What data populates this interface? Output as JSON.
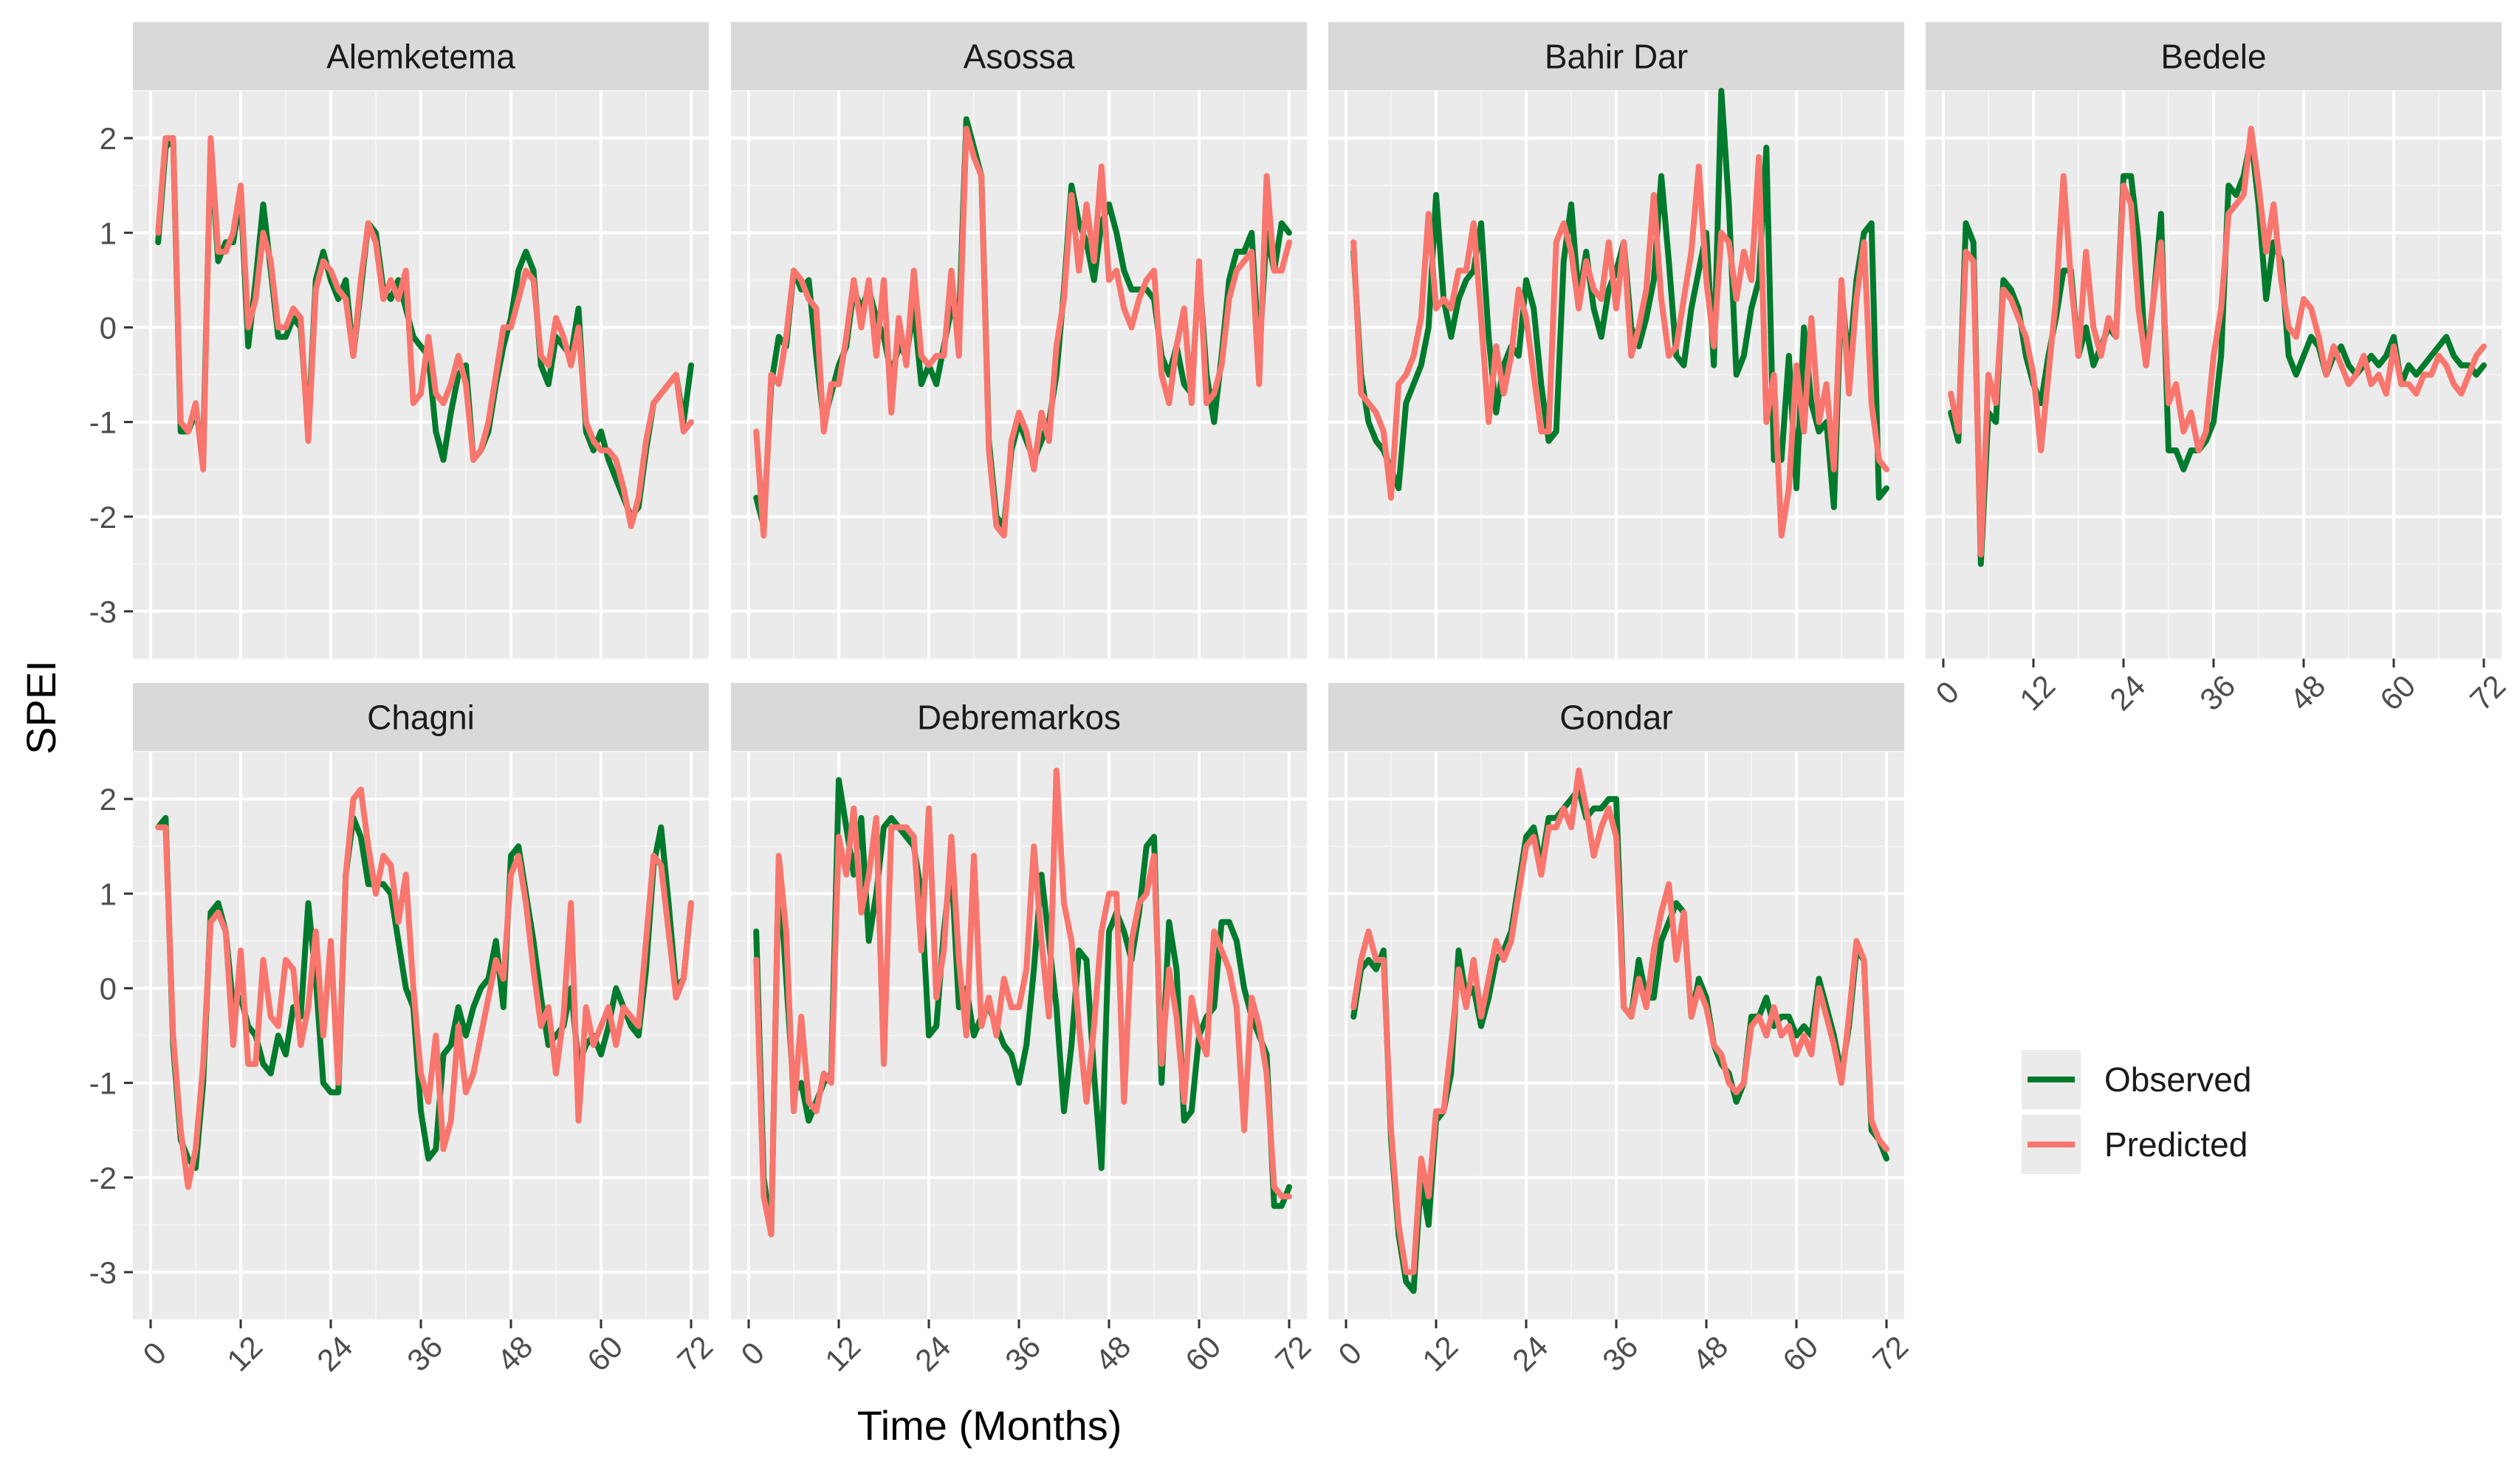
{
  "chart_data": {
    "type": "line",
    "layout": "facet-grid",
    "ylabel": "SPEI",
    "xlabel": "Time (Months)",
    "xlim": [
      0,
      72
    ],
    "ylim": [
      -3.5,
      2.5
    ],
    "x_ticks": [
      0,
      12,
      24,
      36,
      48,
      60,
      72
    ],
    "y_ticks": [
      -3,
      -2,
      -1,
      0,
      1,
      2
    ],
    "grid": true,
    "legend": {
      "position": "right",
      "entries": [
        {
          "name": "Observed",
          "color": "#007a2c"
        },
        {
          "name": "Predicted",
          "color": "#f8766d"
        }
      ]
    },
    "x": [
      1,
      2,
      3,
      4,
      5,
      6,
      7,
      8,
      9,
      10,
      11,
      12,
      13,
      14,
      15,
      16,
      17,
      18,
      19,
      20,
      21,
      22,
      23,
      24,
      25,
      26,
      27,
      28,
      29,
      30,
      31,
      32,
      33,
      34,
      35,
      36,
      37,
      38,
      39,
      40,
      41,
      42,
      43,
      44,
      45,
      46,
      47,
      48,
      49,
      50,
      51,
      52,
      53,
      54,
      55,
      56,
      57,
      58,
      59,
      60,
      61,
      62,
      63,
      64,
      65,
      66,
      67,
      68,
      69,
      70,
      71,
      72
    ],
    "panels": [
      {
        "title": "Alemketema",
        "observed": [
          0.9,
          1.9,
          2.0,
          -1.1,
          -1.1,
          -0.9,
          -1.3,
          1.9,
          0.7,
          0.9,
          0.9,
          1.4,
          -0.2,
          0.5,
          1.3,
          0.6,
          -0.1,
          -0.1,
          0.1,
          0.0,
          -1.1,
          0.5,
          0.8,
          0.5,
          0.3,
          0.5,
          -0.3,
          0.4,
          1.1,
          1.0,
          0.4,
          0.3,
          0.5,
          0.2,
          -0.1,
          -0.2,
          -0.3,
          -1.1,
          -1.4,
          -0.9,
          -0.5,
          -0.4,
          -1.4,
          -1.3,
          -1.1,
          -0.6,
          -0.2,
          0.1,
          0.6,
          0.8,
          0.6,
          -0.4,
          -0.6,
          -0.1,
          -0.2,
          -0.3,
          0.2,
          -1.1,
          -1.3,
          -1.1,
          -1.4,
          -1.6,
          -1.8,
          -2.0,
          -1.9,
          -1.3,
          -0.8,
          -0.7,
          -0.6,
          -0.5,
          -1.0,
          -0.4
        ],
        "predicted": [
          1.0,
          2.0,
          2.0,
          -1.0,
          -1.1,
          -0.8,
          -1.5,
          2.0,
          0.8,
          0.8,
          1.0,
          1.5,
          0.0,
          0.3,
          1.0,
          0.7,
          0.0,
          0.0,
          0.2,
          0.1,
          -1.2,
          0.4,
          0.7,
          0.6,
          0.4,
          0.3,
          -0.3,
          0.5,
          1.1,
          0.9,
          0.3,
          0.5,
          0.3,
          0.6,
          -0.8,
          -0.7,
          -0.1,
          -0.7,
          -0.8,
          -0.6,
          -0.3,
          -0.6,
          -1.4,
          -1.3,
          -1.0,
          -0.5,
          0.0,
          0.0,
          0.3,
          0.6,
          0.5,
          -0.3,
          -0.4,
          0.1,
          -0.1,
          -0.4,
          0.0,
          -1.0,
          -1.2,
          -1.3,
          -1.3,
          -1.4,
          -1.7,
          -2.1,
          -1.8,
          -1.2,
          -0.8,
          -0.7,
          -0.6,
          -0.5,
          -1.1,
          -1.0
        ]
      },
      {
        "title": "Asossa",
        "observed": [
          -1.8,
          -2.1,
          -0.6,
          -0.1,
          -0.2,
          0.6,
          0.4,
          0.5,
          -0.3,
          -1.0,
          -0.7,
          -0.4,
          -0.2,
          0.4,
          0.2,
          0.4,
          0.1,
          -0.1,
          -0.5,
          -0.2,
          -0.3,
          0.2,
          -0.6,
          -0.4,
          -0.6,
          -0.2,
          0.2,
          0.0,
          2.2,
          1.9,
          1.6,
          -1.2,
          -2.0,
          -2.1,
          -1.3,
          -1.0,
          -1.2,
          -1.4,
          -1.2,
          -1.0,
          -0.5,
          0.4,
          1.5,
          1.1,
          0.9,
          0.5,
          1.1,
          1.3,
          1.0,
          0.6,
          0.4,
          0.4,
          0.4,
          0.3,
          -0.3,
          -0.5,
          -0.2,
          -0.6,
          -0.7,
          0.6,
          -0.5,
          -1.0,
          -0.3,
          0.5,
          0.8,
          0.8,
          1.0,
          -0.3,
          1.0,
          0.6,
          1.1,
          1.0
        ],
        "predicted": [
          -1.1,
          -2.2,
          -0.5,
          -0.6,
          -0.1,
          0.6,
          0.5,
          0.3,
          0.2,
          -1.1,
          -0.6,
          -0.6,
          -0.1,
          0.5,
          0.0,
          0.5,
          -0.3,
          0.5,
          -0.9,
          0.1,
          -0.4,
          0.6,
          -0.3,
          -0.4,
          -0.3,
          -0.3,
          0.6,
          -0.3,
          2.1,
          1.8,
          1.6,
          -1.3,
          -2.1,
          -2.2,
          -1.2,
          -0.9,
          -1.1,
          -1.5,
          -0.9,
          -1.2,
          -0.2,
          0.3,
          1.4,
          0.6,
          1.3,
          0.7,
          1.7,
          0.5,
          0.6,
          0.2,
          0.0,
          0.3,
          0.5,
          0.6,
          -0.5,
          -0.8,
          -0.2,
          0.2,
          -0.8,
          0.7,
          -0.8,
          -0.7,
          -0.4,
          0.3,
          0.6,
          0.7,
          0.8,
          -0.6,
          1.6,
          0.6,
          0.6,
          0.9
        ]
      },
      {
        "title": "Bahir Dar",
        "observed": [
          0.8,
          -0.5,
          -1.0,
          -1.2,
          -1.3,
          -1.5,
          -1.7,
          -0.8,
          -0.6,
          -0.4,
          0.0,
          1.4,
          0.3,
          -0.1,
          0.3,
          0.5,
          0.6,
          1.1,
          -0.1,
          -0.9,
          -0.4,
          -0.2,
          -0.3,
          0.5,
          0.2,
          -0.6,
          -1.2,
          -1.1,
          0.7,
          1.3,
          0.3,
          0.8,
          0.2,
          -0.1,
          0.4,
          0.6,
          0.9,
          0.0,
          -0.2,
          0.1,
          0.5,
          1.6,
          0.7,
          -0.3,
          -0.4,
          0.2,
          0.6,
          1.0,
          -0.4,
          2.5,
          1.3,
          -0.5,
          -0.3,
          0.2,
          0.5,
          1.9,
          -1.4,
          -1.4,
          -0.3,
          -1.7,
          0.0,
          -0.8,
          -1.1,
          -1.0,
          -1.9,
          0.4,
          -0.4,
          0.5,
          1.0,
          1.1,
          -1.8,
          -1.7
        ],
        "predicted": [
          0.9,
          -0.7,
          -0.8,
          -0.9,
          -1.1,
          -1.8,
          -0.6,
          -0.5,
          -0.3,
          0.1,
          1.2,
          0.2,
          0.3,
          0.2,
          0.6,
          0.6,
          1.1,
          0.1,
          -1.0,
          -0.2,
          -0.7,
          -0.3,
          0.4,
          0.1,
          -0.5,
          -1.1,
          -1.1,
          0.9,
          1.1,
          0.8,
          0.2,
          0.7,
          0.4,
          0.3,
          0.9,
          0.2,
          0.9,
          -0.3,
          0.0,
          0.4,
          1.4,
          0.3,
          -0.3,
          -0.2,
          0.3,
          0.8,
          1.7,
          0.5,
          -0.2,
          1.0,
          0.9,
          0.3,
          0.8,
          0.5,
          1.8,
          -1.0,
          -0.5,
          -2.2,
          -1.7,
          -0.4,
          -1.1,
          0.1,
          -1.0,
          -0.6,
          -1.5,
          0.5,
          -0.7,
          0.3,
          0.9,
          -0.8,
          -1.4,
          -1.5
        ]
      },
      {
        "title": "Bedele",
        "observed": [
          -0.9,
          -1.2,
          1.1,
          0.9,
          -2.5,
          -0.9,
          -1.0,
          0.5,
          0.4,
          0.2,
          -0.3,
          -0.6,
          -0.8,
          -0.3,
          0.1,
          0.6,
          0.6,
          -0.3,
          0.0,
          -0.4,
          -0.2,
          0.0,
          -0.1,
          1.6,
          1.6,
          0.9,
          -0.4,
          0.3,
          1.2,
          -1.3,
          -1.3,
          -1.5,
          -1.3,
          -1.3,
          -1.2,
          -1.0,
          -0.3,
          1.5,
          1.4,
          1.6,
          2.0,
          1.3,
          0.3,
          0.9,
          0.7,
          -0.3,
          -0.5,
          -0.3,
          -0.1,
          -0.2,
          -0.5,
          -0.3,
          -0.2,
          -0.4,
          -0.5,
          -0.4,
          -0.3,
          -0.4,
          -0.3,
          -0.1,
          -0.6,
          -0.4,
          -0.5,
          -0.4,
          -0.3,
          -0.2,
          -0.1,
          -0.3,
          -0.4,
          -0.4,
          -0.5,
          -0.4
        ],
        "predicted": [
          -0.7,
          -1.1,
          0.8,
          0.7,
          -2.4,
          -0.5,
          -0.8,
          0.4,
          0.3,
          0.1,
          -0.1,
          -0.5,
          -1.3,
          -0.5,
          0.3,
          1.6,
          0.5,
          -0.3,
          0.8,
          0.0,
          -0.3,
          0.1,
          -0.1,
          1.5,
          1.3,
          0.2,
          -0.4,
          0.3,
          0.9,
          -0.8,
          -0.6,
          -1.1,
          -0.9,
          -1.3,
          -1.1,
          -0.3,
          0.2,
          1.2,
          1.3,
          1.4,
          2.1,
          1.5,
          0.8,
          1.3,
          0.5,
          0.0,
          -0.1,
          0.3,
          0.2,
          -0.1,
          -0.5,
          -0.2,
          -0.4,
          -0.6,
          -0.5,
          -0.3,
          -0.6,
          -0.5,
          -0.7,
          -0.2,
          -0.6,
          -0.6,
          -0.7,
          -0.5,
          -0.5,
          -0.3,
          -0.4,
          -0.6,
          -0.7,
          -0.5,
          -0.3,
          -0.2
        ]
      },
      {
        "title": "Chagni",
        "observed": [
          1.7,
          1.8,
          -0.6,
          -1.6,
          -1.8,
          -1.9,
          -1.0,
          0.8,
          0.9,
          0.6,
          -0.2,
          -0.1,
          -0.4,
          -0.5,
          -0.8,
          -0.9,
          -0.5,
          -0.7,
          -0.2,
          -0.3,
          0.9,
          0.1,
          -1.0,
          -1.1,
          -1.1,
          1.2,
          1.8,
          1.6,
          1.1,
          1.1,
          1.1,
          1.0,
          0.5,
          0.0,
          -0.2,
          -1.3,
          -1.8,
          -1.7,
          -0.7,
          -0.6,
          -0.2,
          -0.5,
          -0.2,
          0.0,
          0.1,
          0.5,
          -0.2,
          1.4,
          1.5,
          1.0,
          0.5,
          -0.1,
          -0.6,
          -0.5,
          -0.4,
          0.0,
          -0.8,
          -0.6,
          -0.5,
          -0.7,
          -0.4,
          0.0,
          -0.2,
          -0.4,
          -0.5,
          0.2,
          1.3,
          1.7,
          0.9,
          0.0,
          0.1,
          0.9
        ],
        "predicted": [
          1.7,
          1.7,
          -0.5,
          -1.5,
          -2.1,
          -1.7,
          -0.8,
          0.7,
          0.8,
          0.6,
          -0.6,
          0.4,
          -0.8,
          -0.8,
          0.3,
          -0.3,
          -0.4,
          0.3,
          0.2,
          -0.6,
          -0.2,
          0.6,
          -0.5,
          0.5,
          -1.0,
          1.2,
          2.0,
          2.1,
          1.5,
          1.0,
          1.4,
          1.3,
          0.7,
          1.2,
          0.0,
          -0.9,
          -1.2,
          -0.5,
          -1.7,
          -1.4,
          -0.4,
          -1.1,
          -0.9,
          -0.5,
          -0.1,
          0.3,
          0.1,
          1.2,
          1.4,
          0.9,
          0.2,
          -0.4,
          -0.2,
          -0.9,
          -0.3,
          0.9,
          -1.4,
          -0.2,
          -0.6,
          -0.4,
          -0.2,
          -0.6,
          -0.2,
          -0.3,
          -0.4,
          0.5,
          1.4,
          1.3,
          0.6,
          -0.1,
          0.1,
          0.9
        ]
      },
      {
        "title": "Debremarkos",
        "observed": [
          0.6,
          -2.0,
          -2.6,
          1.3,
          0.1,
          -1.1,
          -1.0,
          -1.4,
          -1.2,
          -1.0,
          -0.9,
          2.2,
          1.7,
          1.2,
          1.8,
          0.5,
          1.0,
          1.7,
          1.8,
          1.7,
          1.6,
          1.5,
          1.0,
          -0.5,
          -0.4,
          0.6,
          1.3,
          -0.2,
          0.0,
          -0.5,
          -0.3,
          -0.2,
          -0.4,
          -0.6,
          -0.7,
          -1.0,
          -0.6,
          0.2,
          1.2,
          0.5,
          -0.2,
          -1.3,
          -0.6,
          0.4,
          0.3,
          -0.9,
          -1.9,
          0.6,
          0.8,
          0.6,
          0.3,
          0.8,
          1.5,
          1.6,
          -1.0,
          0.7,
          0.2,
          -1.4,
          -1.3,
          -0.5,
          -0.3,
          -0.2,
          0.7,
          0.7,
          0.5,
          0.0,
          -0.3,
          -0.5,
          -0.7,
          -2.3,
          -2.3,
          -2.1
        ],
        "predicted": [
          0.3,
          -2.2,
          -2.6,
          1.4,
          0.6,
          -1.3,
          -0.3,
          -1.2,
          -1.3,
          -0.9,
          -1.0,
          1.6,
          1.2,
          1.9,
          0.8,
          1.2,
          1.8,
          -0.8,
          1.7,
          1.7,
          1.7,
          1.6,
          0.4,
          1.9,
          -0.1,
          0.4,
          1.6,
          0.3,
          -0.5,
          1.4,
          -0.4,
          -0.1,
          -0.5,
          0.1,
          -0.2,
          -0.2,
          0.2,
          1.5,
          0.5,
          -0.3,
          2.3,
          0.9,
          0.5,
          -0.4,
          -1.2,
          -0.4,
          0.6,
          1.0,
          1.0,
          -1.2,
          0.5,
          0.9,
          1.0,
          1.4,
          -0.8,
          0.2,
          -0.3,
          -1.2,
          -0.1,
          -0.5,
          -0.7,
          0.6,
          0.4,
          0.2,
          -0.2,
          -1.5,
          -0.1,
          -0.4,
          -0.9,
          -2.1,
          -2.2,
          -2.2
        ]
      },
      {
        "title": "Gondar",
        "observed": [
          -0.3,
          0.2,
          0.3,
          0.2,
          0.4,
          -1.6,
          -2.6,
          -3.1,
          -3.2,
          -2.0,
          -2.5,
          -1.4,
          -1.3,
          -0.9,
          0.4,
          -0.1,
          0.0,
          -0.4,
          -0.1,
          0.3,
          0.4,
          0.6,
          1.1,
          1.6,
          1.7,
          1.3,
          1.8,
          1.8,
          1.9,
          2.0,
          2.1,
          1.8,
          1.9,
          1.9,
          2.0,
          2.0,
          -0.2,
          -0.3,
          0.3,
          -0.1,
          -0.1,
          0.5,
          0.7,
          0.9,
          0.8,
          -0.3,
          0.1,
          -0.1,
          -0.6,
          -0.8,
          -0.9,
          -1.2,
          -1.0,
          -0.3,
          -0.3,
          -0.1,
          -0.4,
          -0.3,
          -0.3,
          -0.5,
          -0.4,
          -0.5,
          0.1,
          -0.2,
          -0.5,
          -0.9,
          -0.4,
          0.4,
          0.3,
          -1.5,
          -1.6,
          -1.8
        ],
        "predicted": [
          -0.2,
          0.3,
          0.6,
          0.3,
          0.3,
          -1.5,
          -2.5,
          -3.0,
          -3.0,
          -1.8,
          -2.2,
          -1.3,
          -1.3,
          -0.6,
          0.2,
          -0.2,
          0.3,
          -0.3,
          0.1,
          0.5,
          0.3,
          0.5,
          1.0,
          1.5,
          1.6,
          1.2,
          1.7,
          1.7,
          1.9,
          1.7,
          2.3,
          1.9,
          1.4,
          1.7,
          1.9,
          1.6,
          -0.2,
          -0.3,
          0.1,
          -0.2,
          0.4,
          0.8,
          1.1,
          0.3,
          0.8,
          -0.3,
          0.0,
          -0.2,
          -0.6,
          -0.7,
          -1.0,
          -1.1,
          -1.0,
          -0.4,
          -0.3,
          -0.5,
          -0.2,
          -0.5,
          -0.4,
          -0.7,
          -0.5,
          -0.7,
          0.0,
          -0.3,
          -0.6,
          -1.0,
          -0.3,
          0.5,
          0.3,
          -1.4,
          -1.6,
          -1.7
        ]
      }
    ]
  }
}
